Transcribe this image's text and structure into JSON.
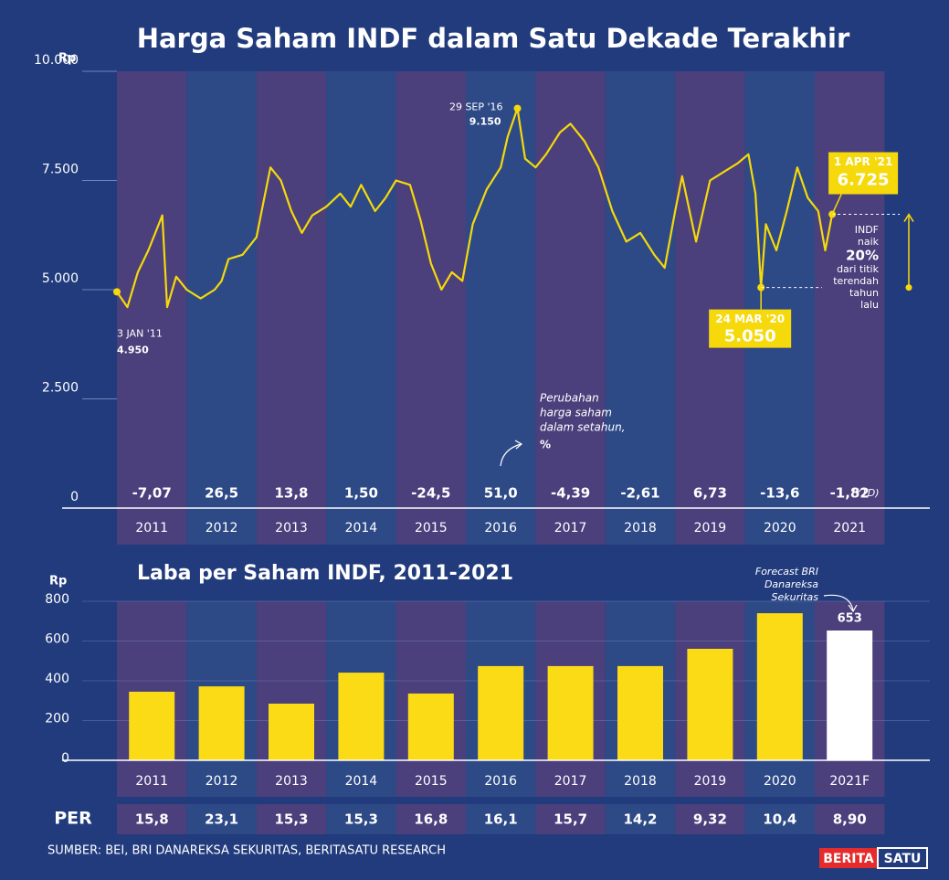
{
  "chart_data": [
    {
      "type": "line",
      "title": "Harga Saham INDF dalam Satu Dekade Terakhir",
      "y_unit": "Rp",
      "color": "#f5d90a",
      "x": [
        2011.0,
        2011.15,
        2011.3,
        2011.45,
        2011.65,
        2011.72,
        2011.85,
        2012.0,
        2012.2,
        2012.4,
        2012.5,
        2012.6,
        2012.8,
        2013.0,
        2013.1,
        2013.2,
        2013.35,
        2013.5,
        2013.65,
        2013.8,
        2014.0,
        2014.2,
        2014.35,
        2014.5,
        2014.7,
        2014.85,
        2015.0,
        2015.2,
        2015.35,
        2015.5,
        2015.65,
        2015.8,
        2015.95,
        2016.1,
        2016.3,
        2016.5,
        2016.6,
        2016.74,
        2016.85,
        2017.0,
        2017.15,
        2017.35,
        2017.5,
        2017.7,
        2017.9,
        2018.1,
        2018.3,
        2018.5,
        2018.7,
        2018.85,
        2019.0,
        2019.1,
        2019.3,
        2019.5,
        2019.7,
        2019.9,
        2020.05,
        2020.15,
        2020.23,
        2020.3,
        2020.45,
        2020.6,
        2020.75,
        2020.9,
        2021.05,
        2021.15,
        2021.25
      ],
      "values": [
        4950,
        4600,
        5400,
        5900,
        6700,
        4600,
        5300,
        5000,
        4800,
        5000,
        5200,
        5700,
        5800,
        6200,
        7000,
        7800,
        7500,
        6800,
        6300,
        6700,
        6900,
        7200,
        6900,
        7400,
        6800,
        7100,
        7500,
        7400,
        6600,
        5600,
        5000,
        5400,
        5200,
        6500,
        7300,
        7800,
        8500,
        9150,
        8000,
        7800,
        8100,
        8600,
        8800,
        8400,
        7800,
        6800,
        6100,
        6300,
        5800,
        5500,
        6800,
        7600,
        6100,
        7500,
        7700,
        7900,
        8100,
        7200,
        5050,
        6500,
        5900,
        6800,
        7800,
        7100,
        6800,
        5900,
        6725
      ],
      "xlim": [
        2011,
        2022
      ],
      "xticks": [
        {
          "value": 2011.5,
          "label": "2011"
        },
        {
          "value": 2012.5,
          "label": "2012"
        },
        {
          "value": 2013.5,
          "label": "2013"
        },
        {
          "value": 2014.5,
          "label": "2014"
        },
        {
          "value": 2015.5,
          "label": "2015"
        },
        {
          "value": 2016.5,
          "label": "2016"
        },
        {
          "value": 2017.5,
          "label": "2017"
        },
        {
          "value": 2018.5,
          "label": "2018"
        },
        {
          "value": 2019.5,
          "label": "2019"
        },
        {
          "value": 2020.5,
          "label": "2020"
        },
        {
          "value": 2021.5,
          "label": "2021"
        }
      ],
      "ylim": [
        0,
        10000
      ],
      "yticks": [
        0,
        {
          "value": 2500,
          "label": "2.500"
        },
        {
          "value": 5000,
          "label": "5.000"
        },
        {
          "value": 7500,
          "label": "7.500"
        },
        {
          "value": 10000,
          "label": "10.000"
        }
      ],
      "band_colors": [
        "#4b3f7c",
        "#2d4a87"
      ],
      "annotations": [
        {
          "date": "3 JAN '11",
          "x": 2011.0,
          "value": 4950,
          "label": "4.950"
        },
        {
          "date": "29 SEP '16",
          "x": 2016.74,
          "value": 9150,
          "label": "9.150"
        },
        {
          "date": "24 MAR '20",
          "x": 2020.23,
          "value": 5050,
          "label": "5.050"
        },
        {
          "date": "1 APR '21",
          "x": 2021.25,
          "value": 6725,
          "label": "6.725"
        }
      ],
      "rise_note": [
        "INDF",
        "naik",
        "20%",
        "dari titik",
        "terendah",
        "tahun",
        "lalu"
      ],
      "yearly_change": {
        "note": [
          "Perubahan",
          "harga saham",
          "dalam setahun,",
          "%"
        ],
        "values": [
          -7.07,
          26.5,
          13.8,
          1.5,
          -24.5,
          51.0,
          -4.39,
          -2.61,
          6.73,
          -13.6,
          -1.82
        ],
        "value_labels": [
          "-7,07",
          "26,5",
          "13,8",
          "1,50",
          "-24,5",
          "51,0",
          "-4,39",
          "-2,61",
          "6,73",
          "-13,6",
          "-1,82"
        ],
        "positive_color": "#f5d90a",
        "negative_color": "#ee3a4f",
        "ytd_note": "(YTD)"
      }
    },
    {
      "type": "bar",
      "title": "Laba per Saham INDF, 2011-2021",
      "y_unit": "Rp",
      "categories": [
        "2011",
        "2012",
        "2013",
        "2014",
        "2015",
        "2016",
        "2017",
        "2018",
        "2019",
        "2020",
        "2021F"
      ],
      "values": [
        345,
        372,
        285,
        441,
        336,
        474,
        474,
        474,
        561,
        740,
        653
      ],
      "value_labels": [
        null,
        null,
        null,
        null,
        null,
        null,
        null,
        null,
        null,
        null,
        "653"
      ],
      "colors": [
        "#fbdb15",
        "#fbdb15",
        "#fbdb15",
        "#fbdb15",
        "#fbdb15",
        "#fbdb15",
        "#fbdb15",
        "#fbdb15",
        "#fbdb15",
        "#fbdb15",
        "#ffffff"
      ],
      "ylim": [
        0,
        800
      ],
      "yticks": [
        0,
        200,
        400,
        600,
        800
      ],
      "band_colors": [
        "#4b3f7c",
        "#2d4a87"
      ],
      "annotation": [
        "Forecast BRI",
        "Danareksa",
        "Sekuritas"
      ]
    }
  ],
  "per": {
    "label": "PER",
    "values": [
      "15,8",
      "23,1",
      "15,3",
      "15,3",
      "16,8",
      "16,1",
      "15,7",
      "14,2",
      "9,32",
      "10,4",
      "8,90"
    ],
    "colors": [
      "#fbdb15",
      "#fbdb15",
      "#fbdb15",
      "#fbdb15",
      "#fbdb15",
      "#fbdb15",
      "#fbdb15",
      "#fbdb15",
      "#fbdb15",
      "#fbdb15",
      "#ffffff"
    ]
  },
  "source": "SUMBER: BEI, BRI DANAREKSA SEKURITAS, BERITASATU RESEARCH",
  "logo": [
    "BERITA",
    "SATU"
  ]
}
